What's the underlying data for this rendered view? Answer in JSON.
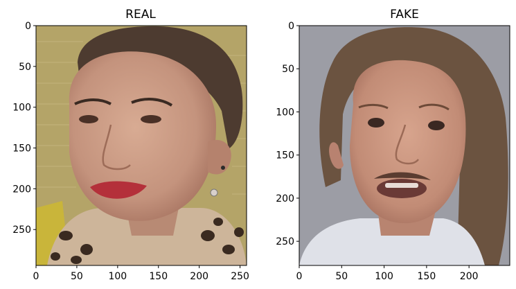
{
  "chart_data": [
    {
      "type": "image",
      "title": "REAL",
      "x_ticks": [
        0,
        50,
        100,
        150,
        200,
        250
      ],
      "y_ticks": [
        0,
        50,
        100,
        150,
        200,
        250
      ],
      "xlim": [
        0,
        258
      ],
      "ylim": [
        294,
        0
      ],
      "image_description": "Photograph of a smiling woman with very short dark hair, red lipstick, leopard-print top, against a yellow brick wall",
      "colors": {
        "background": "#b5a566",
        "skin": "#c79a84",
        "hair": "#4e3c31",
        "lips": "#b5303a"
      }
    },
    {
      "type": "image",
      "title": "FAKE",
      "x_ticks": [
        0,
        50,
        100,
        150,
        200
      ],
      "y_ticks": [
        0,
        50,
        100,
        150,
        200,
        250
      ],
      "xlim": [
        0,
        248
      ],
      "ylim": [
        278,
        0
      ],
      "image_description": "Manipulated face image of a person with long brown hair, open mouth with mustache, against a grey background",
      "colors": {
        "background": "#9d9ea6",
        "skin": "#c69480",
        "hair": "#6c5440"
      }
    }
  ]
}
